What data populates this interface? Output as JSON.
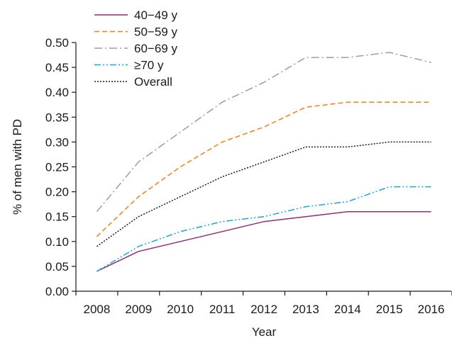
{
  "chart_data": {
    "type": "line",
    "x": [
      "2008",
      "2009",
      "2010",
      "2011",
      "2012",
      "2013",
      "2014",
      "2015",
      "2016"
    ],
    "xlabel": "Year",
    "ylabel": "% of men with PD",
    "ylim": [
      0.0,
      0.5
    ],
    "yticks": [
      "0.00",
      "0.05",
      "0.10",
      "0.15",
      "0.20",
      "0.25",
      "0.30",
      "0.35",
      "0.40",
      "0.45",
      "0.50"
    ],
    "grid": false,
    "legend_position": "top-left",
    "series": [
      {
        "name": "40−49 y",
        "color": "#8e2f73",
        "dash": "solid",
        "values": [
          0.04,
          0.08,
          0.1,
          0.12,
          0.14,
          0.15,
          0.16,
          0.16,
          0.16
        ]
      },
      {
        "name": "50−59 y",
        "color": "#f07f1e",
        "dash": "dashed",
        "values": [
          0.11,
          0.19,
          0.25,
          0.3,
          0.33,
          0.37,
          0.38,
          0.38,
          0.38
        ]
      },
      {
        "name": "60−69 y",
        "color": "#9d9d9d",
        "dash": "dashdot",
        "values": [
          0.16,
          0.26,
          0.32,
          0.38,
          0.42,
          0.47,
          0.47,
          0.48,
          0.46
        ]
      },
      {
        "name": "≥70 y",
        "color": "#1ea6d6",
        "dash": "dashdotdot",
        "values": [
          0.04,
          0.09,
          0.12,
          0.14,
          0.15,
          0.17,
          0.18,
          0.21,
          0.21
        ]
      },
      {
        "name": "Overall",
        "color": "#1a1a1a",
        "dash": "dotted",
        "values": [
          0.09,
          0.15,
          0.19,
          0.23,
          0.26,
          0.29,
          0.29,
          0.3,
          0.3
        ]
      }
    ]
  }
}
